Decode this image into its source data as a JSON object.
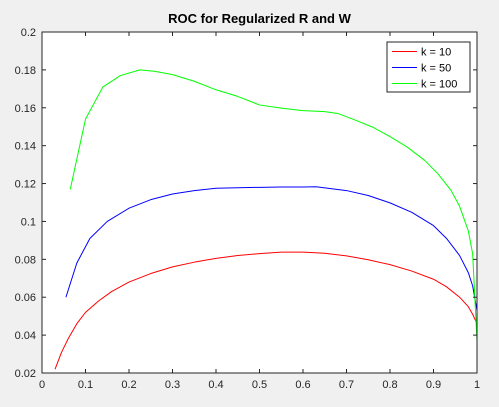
{
  "chart_data": {
    "type": "line",
    "title": "ROC for Regularized R and W",
    "xlabel": "",
    "ylabel": "",
    "xlim": [
      0,
      1
    ],
    "ylim": [
      0.02,
      0.2
    ],
    "xticks": [
      0,
      0.1,
      0.2,
      0.3,
      0.4,
      0.5,
      0.6,
      0.7,
      0.8,
      0.9,
      1
    ],
    "xtick_labels": [
      "0",
      "0.1",
      "0.2",
      "0.3",
      "0.4",
      "0.5",
      "0.6",
      "0.7",
      "0.8",
      "0.9",
      "1"
    ],
    "yticks": [
      0.02,
      0.04,
      0.06,
      0.08,
      0.1,
      0.12,
      0.14,
      0.16,
      0.18,
      0.2
    ],
    "ytick_labels": [
      "0.02",
      "0.04",
      "0.06",
      "0.08",
      "0.1",
      "0.12",
      "0.14",
      "0.16",
      "0.18",
      "0.2"
    ],
    "grid": false,
    "legend_position": "top-right",
    "series": [
      {
        "name": "k = 10",
        "color": "#ff0000",
        "x": [
          0.03,
          0.045,
          0.06,
          0.08,
          0.1,
          0.13,
          0.16,
          0.2,
          0.25,
          0.3,
          0.35,
          0.4,
          0.45,
          0.5,
          0.55,
          0.6,
          0.65,
          0.7,
          0.75,
          0.8,
          0.85,
          0.9,
          0.93,
          0.96,
          0.98,
          0.99,
          1.0
        ],
        "y": [
          0.022,
          0.031,
          0.038,
          0.046,
          0.052,
          0.058,
          0.063,
          0.068,
          0.0725,
          0.076,
          0.0785,
          0.0805,
          0.082,
          0.083,
          0.0838,
          0.0838,
          0.0832,
          0.0818,
          0.0798,
          0.0772,
          0.0738,
          0.0695,
          0.0655,
          0.06,
          0.055,
          0.051,
          0.046
        ]
      },
      {
        "name": "k = 50",
        "color": "#0000ff",
        "x": [
          0.055,
          0.08,
          0.11,
          0.15,
          0.2,
          0.25,
          0.3,
          0.35,
          0.4,
          0.45,
          0.5,
          0.55,
          0.6,
          0.63,
          0.7,
          0.75,
          0.8,
          0.85,
          0.9,
          0.93,
          0.96,
          0.98,
          0.99,
          1.0
        ],
        "y": [
          0.06,
          0.078,
          0.091,
          0.1,
          0.107,
          0.1115,
          0.1145,
          0.1163,
          0.1175,
          0.1178,
          0.118,
          0.1182,
          0.1182,
          0.1183,
          0.1163,
          0.1137,
          0.1098,
          0.1048,
          0.0978,
          0.091,
          0.082,
          0.073,
          0.066,
          0.053
        ]
      },
      {
        "name": "k = 100",
        "color": "#00ff00",
        "x": [
          0.065,
          0.1,
          0.14,
          0.18,
          0.225,
          0.26,
          0.3,
          0.35,
          0.4,
          0.45,
          0.5,
          0.55,
          0.6,
          0.65,
          0.68,
          0.72,
          0.76,
          0.8,
          0.84,
          0.88,
          0.91,
          0.94,
          0.96,
          0.98,
          0.99,
          1.0
        ],
        "y": [
          0.117,
          0.154,
          0.171,
          0.177,
          0.18,
          0.1792,
          0.1775,
          0.174,
          0.1695,
          0.166,
          0.1615,
          0.1598,
          0.1585,
          0.158,
          0.157,
          0.1535,
          0.1498,
          0.1448,
          0.1392,
          0.1322,
          0.1252,
          0.1165,
          0.108,
          0.095,
          0.083,
          0.037
        ]
      }
    ]
  }
}
